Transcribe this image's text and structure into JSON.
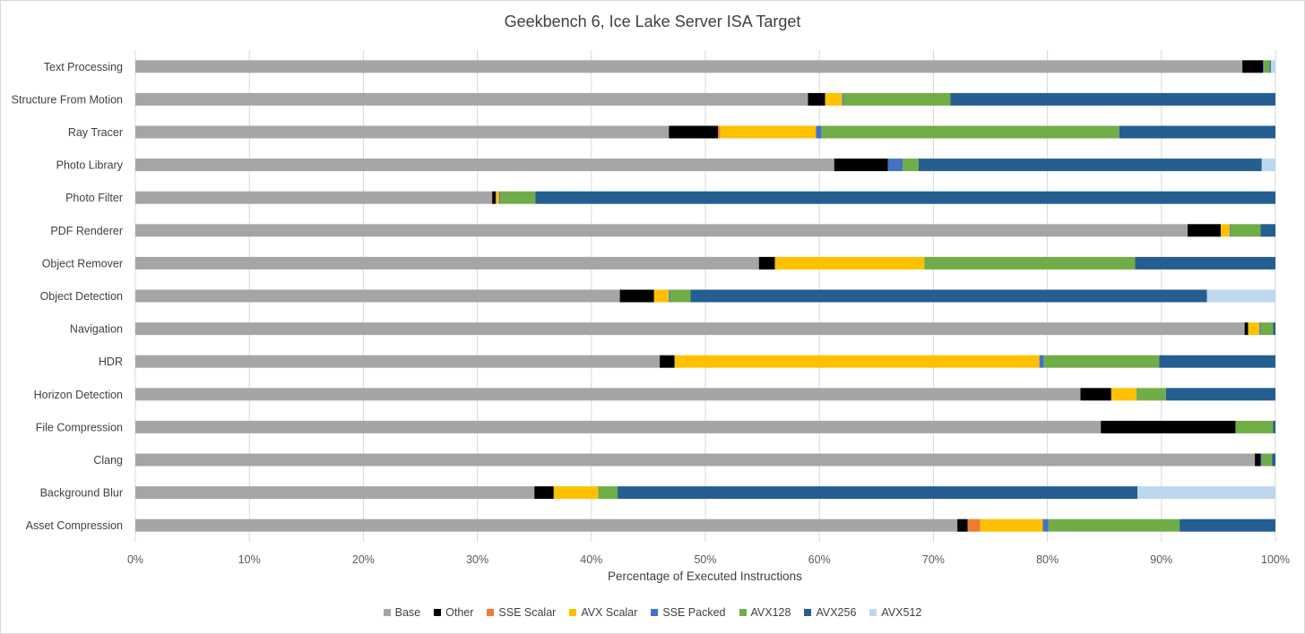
{
  "chart_data": {
    "type": "bar",
    "orientation": "horizontal",
    "stacked": true,
    "normalized": "100%",
    "title": "Geekbench 6, Ice Lake Server ISA Target",
    "xlabel": "Percentage of Executed Instructions",
    "ylabel": "",
    "xlim": [
      0,
      100
    ],
    "xticks": [
      "0%",
      "10%",
      "20%",
      "30%",
      "40%",
      "50%",
      "60%",
      "70%",
      "80%",
      "90%",
      "100%"
    ],
    "grid": true,
    "legend_position": "bottom",
    "categories": [
      "Text Processing",
      "Structure From Motion",
      "Ray Tracer",
      "Photo Library",
      "Photo Filter",
      "PDF Renderer",
      "Object Remover",
      "Object Detection",
      "Navigation",
      "HDR",
      "Horizon Detection",
      "File Compression",
      "Clang",
      "Background Blur",
      "Asset Compression"
    ],
    "series": [
      {
        "name": "Base",
        "color": "#a5a5a5",
        "values": [
          97.1,
          59.0,
          46.8,
          61.3,
          31.3,
          92.3,
          54.7,
          42.5,
          97.3,
          46.0,
          82.9,
          84.6,
          98.2,
          35.0,
          72.1
        ]
      },
      {
        "name": "Other",
        "color": "#000000",
        "values": [
          1.8,
          1.5,
          4.3,
          4.7,
          0.3,
          2.9,
          1.4,
          3.0,
          0.3,
          1.3,
          2.7,
          11.8,
          0.5,
          1.7,
          0.9
        ]
      },
      {
        "name": "SSE Scalar",
        "color": "#ed7d31",
        "values": [
          0,
          0,
          0.2,
          0,
          0.1,
          0,
          0,
          0,
          0,
          0,
          0,
          0,
          0,
          0,
          1.1
        ]
      },
      {
        "name": "AVX Scalar",
        "color": "#ffc000",
        "values": [
          0,
          1.5,
          8.4,
          0,
          0.2,
          0.8,
          13.1,
          1.3,
          1.0,
          32.0,
          2.2,
          0,
          0,
          3.9,
          5.5
        ]
      },
      {
        "name": "SSE Packed",
        "color": "#4472c4",
        "values": [
          0.1,
          0.1,
          0.5,
          1.3,
          0.1,
          0.1,
          0,
          0.1,
          0.1,
          0.4,
          0,
          0,
          0.1,
          0,
          0.5
        ]
      },
      {
        "name": "AVX128",
        "color": "#70ad47",
        "values": [
          0.5,
          9.4,
          26.1,
          1.4,
          3.1,
          2.6,
          18.5,
          1.8,
          1.1,
          10.1,
          2.6,
          3.3,
          0.9,
          1.7,
          11.5
        ]
      },
      {
        "name": "AVX256",
        "color": "#255e91",
        "values": [
          0.1,
          28.5,
          13.7,
          30.1,
          64.9,
          1.3,
          12.3,
          45.3,
          0.2,
          10.2,
          9.6,
          0.2,
          0.3,
          45.6,
          8.4
        ]
      },
      {
        "name": "AVX512",
        "color": "#bdd7ee",
        "values": [
          0.4,
          0,
          0,
          1.2,
          0,
          0,
          0,
          6.0,
          0,
          0,
          0,
          0,
          0,
          12.1,
          0
        ]
      }
    ]
  }
}
